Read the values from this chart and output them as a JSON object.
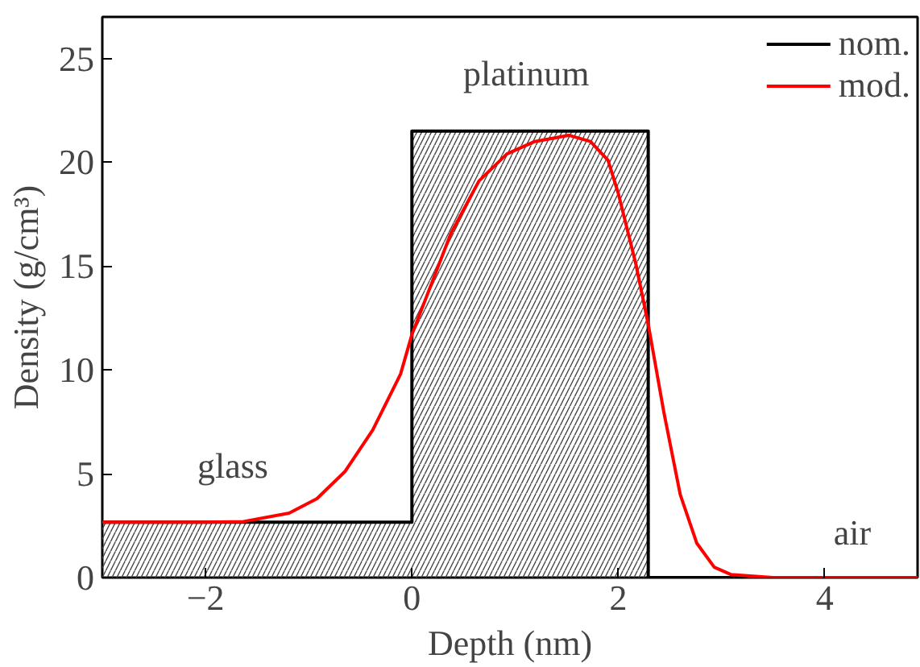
{
  "chart_data": {
    "type": "line",
    "xlabel": "Depth (nm)",
    "ylabel": "Density (g/cm³)",
    "xlim": [
      -3,
      4.9
    ],
    "ylim": [
      0,
      27
    ],
    "xticks": [
      -2,
      0,
      2,
      4
    ],
    "yticks": [
      0,
      5,
      10,
      15,
      20,
      25
    ],
    "legend": "top right",
    "grid": false,
    "series": [
      {
        "name": "nom.",
        "type": "area",
        "color": "#000000",
        "x": [
          -3,
          0,
          0,
          2.29,
          2.29,
          4.9
        ],
        "values": [
          2.67,
          2.67,
          21.5,
          21.5,
          0,
          0
        ]
      },
      {
        "name": "mod.",
        "color": "#ff0000",
        "x": [
          -3,
          -2,
          -1.63,
          -1.19,
          -0.92,
          -0.65,
          -0.38,
          -0.11,
          0,
          0.38,
          0.65,
          0.92,
          1.19,
          1.52,
          1.73,
          1.9,
          2.0,
          2.17,
          2.29,
          2.44,
          2.6,
          2.76,
          2.93,
          3.09,
          3.5,
          4.9
        ],
        "values": [
          2.67,
          2.67,
          2.7,
          3.1,
          3.8,
          5.1,
          7.1,
          9.8,
          11.7,
          16.6,
          19.1,
          20.4,
          21.0,
          21.3,
          21.0,
          20.1,
          18.5,
          15.1,
          12.2,
          8.0,
          4.0,
          1.66,
          0.5,
          0.15,
          0,
          0
        ]
      }
    ],
    "annotations": [
      "glass",
      "platinum",
      "air"
    ]
  }
}
